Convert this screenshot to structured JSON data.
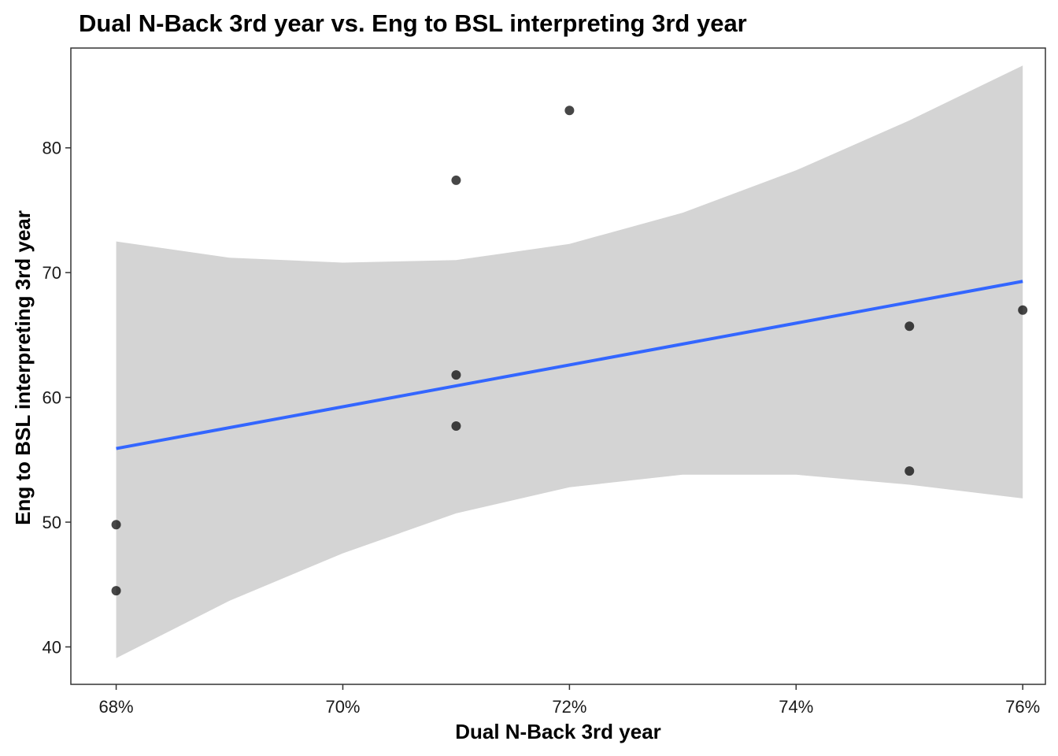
{
  "chart_data": {
    "type": "scatter",
    "title": "Dual N-Back 3rd year vs. Eng to BSL interpreting 3rd year",
    "xlabel": "Dual N-Back 3rd year",
    "ylabel": "Eng to BSL interpreting 3rd year",
    "xlim": [
      0.676,
      0.762
    ],
    "ylim": [
      37,
      88
    ],
    "x_ticks": [
      0.68,
      0.7,
      0.72,
      0.74,
      0.76
    ],
    "x_tick_labels": [
      "68%",
      "70%",
      "72%",
      "74%",
      "76%"
    ],
    "y_ticks": [
      40,
      50,
      60,
      70,
      80
    ],
    "y_tick_labels": [
      "40",
      "50",
      "60",
      "70",
      "80"
    ],
    "grid": false,
    "legend": "none",
    "points": [
      {
        "x": 0.68,
        "y": 49.8
      },
      {
        "x": 0.68,
        "y": 44.5
      },
      {
        "x": 0.71,
        "y": 77.4
      },
      {
        "x": 0.71,
        "y": 61.8
      },
      {
        "x": 0.71,
        "y": 57.7
      },
      {
        "x": 0.72,
        "y": 83.0
      },
      {
        "x": 0.75,
        "y": 65.7
      },
      {
        "x": 0.75,
        "y": 54.1
      },
      {
        "x": 0.76,
        "y": 67.0
      }
    ],
    "fit_line": {
      "x": [
        0.68,
        0.76
      ],
      "y": [
        55.9,
        69.3
      ],
      "color": "#3366FF"
    },
    "confidence_band": {
      "x": [
        0.68,
        0.69,
        0.7,
        0.71,
        0.72,
        0.73,
        0.74,
        0.75,
        0.76
      ],
      "upper": [
        72.5,
        71.2,
        70.8,
        71.0,
        72.3,
        74.8,
        78.2,
        82.2,
        86.6
      ],
      "lower": [
        39.1,
        43.7,
        47.5,
        50.7,
        52.8,
        53.8,
        53.8,
        53.0,
        51.9
      ],
      "color": "#D4D4D4"
    },
    "point_color": "#000000"
  }
}
